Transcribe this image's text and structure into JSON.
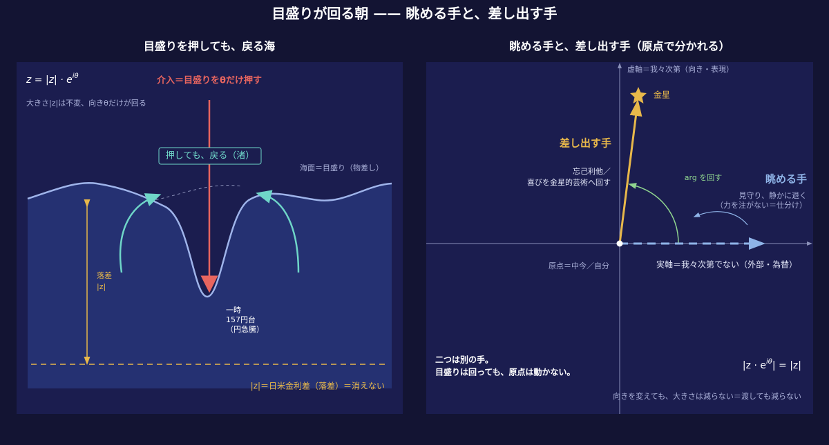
{
  "title": "目盛りが回る朝 —— 眺める手と、差し出す手",
  "left_panel": {
    "title": "目盛りを押しても、戻る海",
    "formula": {
      "base": "z = |z| · e",
      "exponent": "iθ"
    },
    "note": "大きさ|z|は不変、向きθだけが回る",
    "intervention": "介入＝目盛りをθだけ押す",
    "shore_label": "押しても、戻る（渚）",
    "sea_label": "海面＝目盛り（物差し）",
    "drop_label": [
      "落差",
      "|z|"
    ],
    "event_label": [
      "一時",
      "157円台",
      "（円急騰）"
    ],
    "baseline_label": "|z|＝日米金利差（落差）＝消えない"
  },
  "right_panel": {
    "title": "眺める手と、差し出す手（原点で分かれる）",
    "imaginary_axis": "虚軸＝我々次第（向き・表現）",
    "star_label": "金星",
    "offer_hand": "差し出す手",
    "offer_note": [
      "忘己利他／",
      "喜びを金星的芸術へ回す"
    ],
    "arg_label": "arg を回す",
    "watch_hand": "眺める手",
    "watch_note": [
      "見守り、静かに退く",
      "（力を注がない＝仕分け）"
    ],
    "origin_label": "原点＝中今／自分",
    "real_axis": "実軸＝我々次第でない（外部・為替）",
    "summary": [
      "二つは別の手。",
      "目盛りは回っても、原点は動かない。"
    ],
    "identity": {
      "left": "|z · e",
      "exponent": "iθ",
      "right": "| = |z|"
    },
    "footer": "向きを変えても、大きさは減らない＝渡しても減らない"
  }
}
